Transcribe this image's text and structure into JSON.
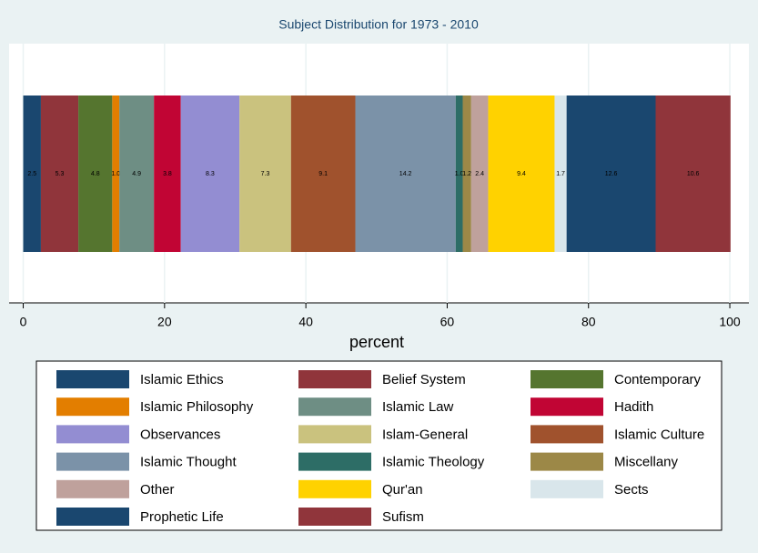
{
  "chart_data": {
    "type": "bar",
    "orientation": "horizontal",
    "stacked": true,
    "title": "Subject Distribution for 1973 - 2010",
    "xlabel": "percent",
    "xlim": [
      -2,
      102.7
    ],
    "xticks": [
      0,
      20,
      40,
      60,
      80,
      100
    ],
    "grid": true,
    "series": [
      {
        "name": "Islamic Ethics",
        "color": "#1a476f",
        "values": [
          2.5
        ],
        "value_labels": [
          "2.5"
        ]
      },
      {
        "name": "Belief System",
        "color": "#90353b",
        "values": [
          5.3
        ],
        "value_labels": [
          "5.3"
        ]
      },
      {
        "name": "Contemporary",
        "color": "#55752f",
        "values": [
          4.8
        ],
        "value_labels": [
          "4.8"
        ]
      },
      {
        "name": "Islamic Philosophy",
        "color": "#e37e00",
        "values": [
          1.0
        ],
        "value_labels": [
          "1.0"
        ]
      },
      {
        "name": "Islamic Law",
        "color": "#6e8e84",
        "values": [
          4.9
        ],
        "value_labels": [
          "4.9"
        ]
      },
      {
        "name": "Hadith",
        "color": "#c10534",
        "values": [
          3.8
        ],
        "value_labels": [
          "3.8"
        ]
      },
      {
        "name": "Observances",
        "color": "#938dd2",
        "values": [
          8.3
        ],
        "value_labels": [
          "8.3"
        ]
      },
      {
        "name": "Islam-General",
        "color": "#cac27e",
        "values": [
          7.3
        ],
        "value_labels": [
          "7.3"
        ]
      },
      {
        "name": "Islamic Culture",
        "color": "#a0522d",
        "values": [
          9.1
        ],
        "value_labels": [
          "9.1"
        ]
      },
      {
        "name": "Islamic Thought",
        "color": "#7b92a8",
        "values": [
          14.2
        ],
        "value_labels": [
          "14.2"
        ]
      },
      {
        "name": "Islamic Theology",
        "color": "#2d6d66",
        "values": [
          1.0
        ],
        "value_labels": [
          "1.0"
        ]
      },
      {
        "name": "Miscellany",
        "color": "#9c8847",
        "values": [
          1.2
        ],
        "value_labels": [
          "1.2"
        ]
      },
      {
        "name": "Other",
        "color": "#bfa19c",
        "values": [
          2.4
        ],
        "value_labels": [
          "2.4"
        ]
      },
      {
        "name": "Qur'an",
        "color": "#ffd200",
        "values": [
          9.4
        ],
        "value_labels": [
          "9.4"
        ]
      },
      {
        "name": "Sects",
        "color": "#d9e6eb",
        "values": [
          1.7
        ],
        "value_labels": [
          "1.7"
        ]
      },
      {
        "name": "Prophetic Life",
        "color": "#1a476f",
        "values": [
          12.6
        ],
        "value_labels": [
          "12.6"
        ]
      },
      {
        "name": "Sufism",
        "color": "#90353b",
        "values": [
          10.6
        ],
        "value_labels": [
          "10.6"
        ]
      }
    ]
  }
}
